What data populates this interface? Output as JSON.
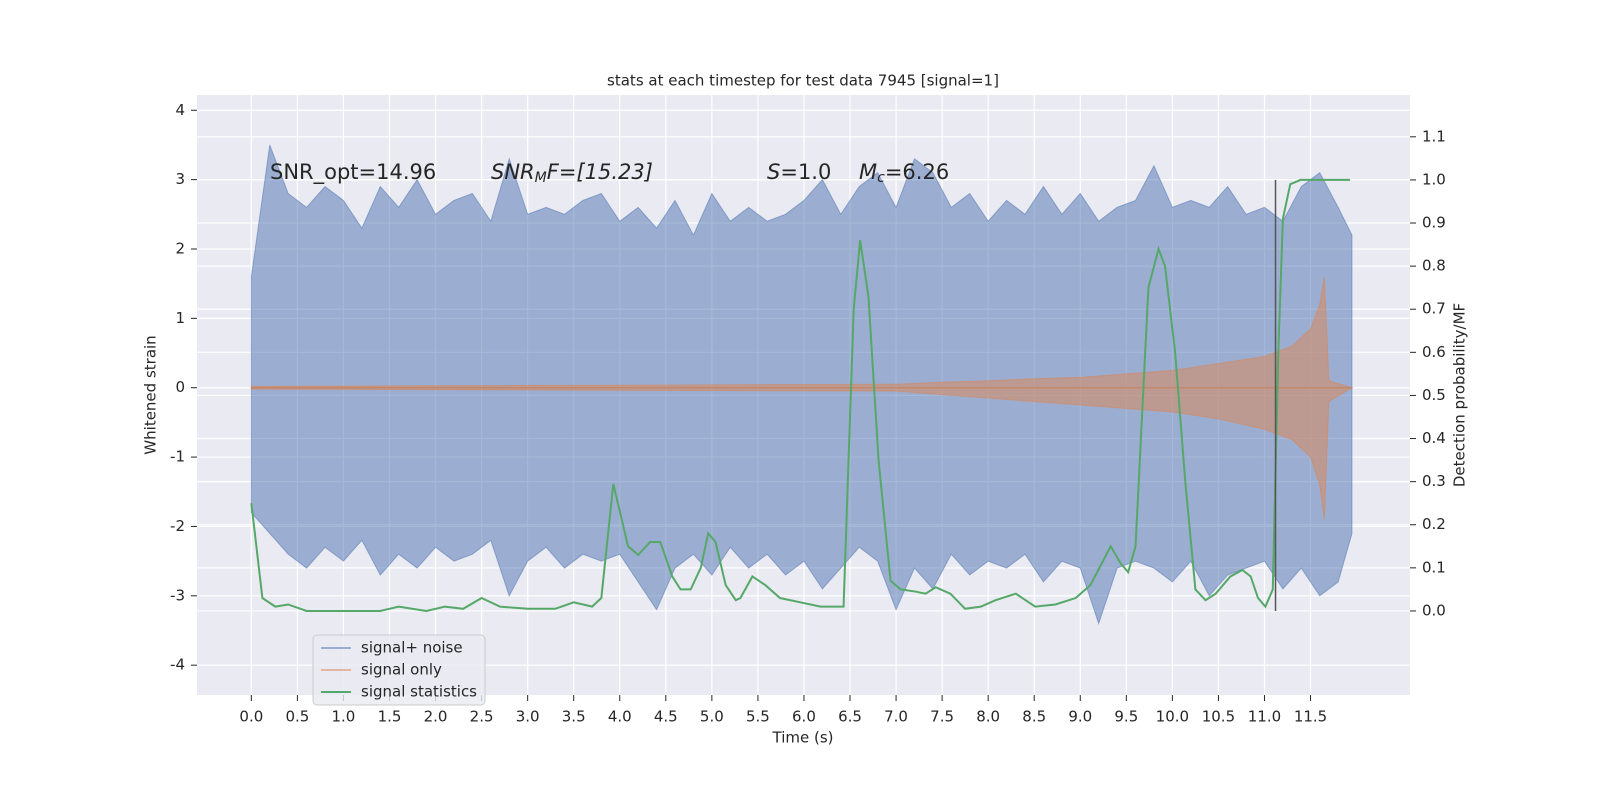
{
  "chart_data": {
    "type": "line",
    "title": "stats at each timestep for test data 7945 [signal=1]",
    "xlabel": "Time (s)",
    "ylabel": "Whitened strain",
    "y2label": "Detection probability/MF",
    "xlim": [
      -0.59,
      12.58
    ],
    "ylim": [
      -4.43,
      4.22
    ],
    "y2lim": [
      -0.195,
      1.197
    ],
    "xticks": [
      {
        "value": 0,
        "label": "0.0"
      },
      0.5,
      {
        "value": 1,
        "label": "1.0"
      },
      1.5,
      {
        "value": 2,
        "label": "2.0"
      },
      2.5,
      {
        "value": 3,
        "label": "3.0"
      },
      3.5,
      {
        "value": 4,
        "label": "4.0"
      },
      4.5,
      {
        "value": 5,
        "label": "5.0"
      },
      5.5,
      {
        "value": 6,
        "label": "6.0"
      },
      6.5,
      {
        "value": 7,
        "label": "7.0"
      },
      7.5,
      {
        "value": 8,
        "label": "8.0"
      },
      8.5,
      {
        "value": 9,
        "label": "9.0"
      },
      9.5,
      {
        "value": 10,
        "label": "10.0"
      },
      10.5,
      {
        "value": 11,
        "label": "11.0"
      },
      11.5
    ],
    "yticks": [
      -4,
      -3,
      -2,
      -1,
      0,
      1,
      2,
      3,
      4
    ],
    "y2ticks": [
      {
        "value": 0,
        "label": "0.0"
      },
      0.1,
      0.2,
      0.3,
      0.4,
      0.5,
      0.6,
      0.7,
      0.8,
      0.9,
      {
        "value": 1,
        "label": "1.0"
      },
      1.1
    ],
    "grid": true,
    "legend": "lower left",
    "annotations": [
      {
        "main": "SNR_opt=14.96"
      },
      {
        "main": "SNR",
        "sub": "M",
        "rest": "F=[15.23]"
      },
      {
        "main": "S",
        "rest": "=1.0"
      },
      {
        "main": "M",
        "sub": "c",
        "rest": "=6.26"
      }
    ],
    "vline": {
      "x": 11.12,
      "ymin": 0,
      "ymax": 1,
      "axis": "y2",
      "color": "#555555"
    },
    "series": [
      {
        "name": "signal+ noise",
        "color": "#4c72b0",
        "x": [
          0,
          0.2,
          0.4,
          0.6,
          0.8,
          1.0,
          1.2,
          1.4,
          1.6,
          1.8,
          2.0,
          2.2,
          2.4,
          2.6,
          2.8,
          3.0,
          3.2,
          3.4,
          3.6,
          3.8,
          4.0,
          4.2,
          4.4,
          4.6,
          4.8,
          5.0,
          5.2,
          5.4,
          5.6,
          5.8,
          6.0,
          6.2,
          6.4,
          6.6,
          6.8,
          7.0,
          7.2,
          7.4,
          7.6,
          7.8,
          8.0,
          8.2,
          8.4,
          8.6,
          8.8,
          9.0,
          9.2,
          9.4,
          9.6,
          9.8,
          10.0,
          10.2,
          10.4,
          10.6,
          10.8,
          11.0,
          11.2,
          11.4,
          11.6,
          11.8,
          11.95
        ],
        "upper": [
          1.6,
          3.5,
          2.8,
          2.6,
          2.9,
          2.7,
          2.3,
          2.9,
          2.6,
          3.0,
          2.5,
          2.7,
          2.8,
          2.4,
          3.3,
          2.5,
          2.6,
          2.5,
          2.7,
          2.8,
          2.4,
          2.6,
          2.3,
          2.7,
          2.2,
          2.8,
          2.4,
          2.6,
          2.4,
          2.5,
          2.7,
          3.0,
          2.5,
          2.9,
          3.1,
          2.6,
          3.3,
          3.1,
          2.6,
          2.8,
          2.4,
          2.7,
          2.5,
          2.9,
          2.5,
          2.8,
          2.4,
          2.6,
          2.7,
          3.2,
          2.6,
          2.7,
          2.6,
          2.9,
          2.5,
          2.6,
          2.4,
          2.9,
          3.1,
          2.6,
          2.2
        ],
        "lower": [
          -1.8,
          -2.1,
          -2.4,
          -2.6,
          -2.3,
          -2.5,
          -2.2,
          -2.7,
          -2.4,
          -2.6,
          -2.3,
          -2.5,
          -2.4,
          -2.2,
          -3.0,
          -2.5,
          -2.3,
          -2.6,
          -2.4,
          -2.5,
          -2.4,
          -2.8,
          -3.2,
          -2.6,
          -2.4,
          -2.7,
          -2.3,
          -2.6,
          -2.4,
          -2.7,
          -2.5,
          -2.9,
          -2.6,
          -2.3,
          -2.5,
          -3.2,
          -2.6,
          -2.9,
          -2.4,
          -2.7,
          -2.5,
          -2.6,
          -2.4,
          -2.8,
          -2.5,
          -2.6,
          -3.4,
          -2.6,
          -2.5,
          -2.6,
          -2.8,
          -2.5,
          -3.0,
          -2.7,
          -2.6,
          -2.5,
          -2.9,
          -2.6,
          -3.0,
          -2.8,
          -2.1
        ]
      },
      {
        "name": "signal only",
        "color": "#dd8452",
        "x": [
          0,
          7.0,
          7.5,
          8.0,
          8.5,
          9.0,
          9.5,
          10.0,
          10.5,
          11.0,
          11.3,
          11.5,
          11.6,
          11.65,
          11.7,
          11.95
        ],
        "upper": [
          0.02,
          0.05,
          0.08,
          0.1,
          0.13,
          0.15,
          0.2,
          0.25,
          0.35,
          0.45,
          0.6,
          0.85,
          1.2,
          1.6,
          0.1,
          0
        ],
        "lower": [
          -0.02,
          -0.05,
          -0.1,
          -0.15,
          -0.2,
          -0.25,
          -0.3,
          -0.35,
          -0.45,
          -0.6,
          -0.75,
          -1.0,
          -1.4,
          -1.9,
          -0.2,
          0
        ]
      },
      {
        "name": "signal statistics",
        "color": "#55a868",
        "axis": "y2",
        "x": [
          0,
          0.12,
          0.26,
          0.4,
          0.6,
          1.0,
          1.4,
          1.6,
          1.9,
          2.1,
          2.3,
          2.5,
          2.7,
          3.0,
          3.3,
          3.5,
          3.7,
          3.8,
          3.93,
          4.09,
          4.2,
          4.33,
          4.44,
          4.57,
          4.66,
          4.77,
          4.88,
          4.96,
          5.04,
          5.15,
          5.26,
          5.31,
          5.44,
          5.58,
          5.74,
          5.96,
          6.18,
          6.43,
          6.54,
          6.61,
          6.7,
          6.81,
          6.94,
          7.05,
          7.21,
          7.32,
          7.43,
          7.59,
          7.75,
          7.92,
          8.08,
          8.3,
          8.51,
          8.73,
          8.95,
          9.11,
          9.33,
          9.44,
          9.52,
          9.6,
          9.74,
          9.85,
          9.92,
          10.03,
          10.14,
          10.25,
          10.36,
          10.47,
          10.63,
          10.76,
          10.85,
          10.93,
          11.01,
          11.09,
          11.15,
          11.2,
          11.28,
          11.39,
          11.93
        ],
        "values": [
          0.25,
          0.03,
          0.01,
          0.015,
          0.0,
          0.0,
          0.0,
          0.01,
          0.0,
          0.01,
          0.005,
          0.03,
          0.01,
          0.005,
          0.005,
          0.02,
          0.01,
          0.03,
          0.295,
          0.15,
          0.13,
          0.16,
          0.16,
          0.08,
          0.05,
          0.05,
          0.1,
          0.18,
          0.16,
          0.06,
          0.025,
          0.03,
          0.08,
          0.06,
          0.03,
          0.02,
          0.01,
          0.01,
          0.7,
          0.86,
          0.73,
          0.35,
          0.07,
          0.05,
          0.045,
          0.04,
          0.055,
          0.04,
          0.005,
          0.01,
          0.025,
          0.04,
          0.01,
          0.015,
          0.03,
          0.06,
          0.15,
          0.11,
          0.09,
          0.15,
          0.75,
          0.84,
          0.8,
          0.6,
          0.3,
          0.05,
          0.025,
          0.04,
          0.08,
          0.095,
          0.08,
          0.03,
          0.01,
          0.05,
          0.6,
          0.91,
          0.99,
          1.0,
          1.0
        ]
      }
    ]
  }
}
